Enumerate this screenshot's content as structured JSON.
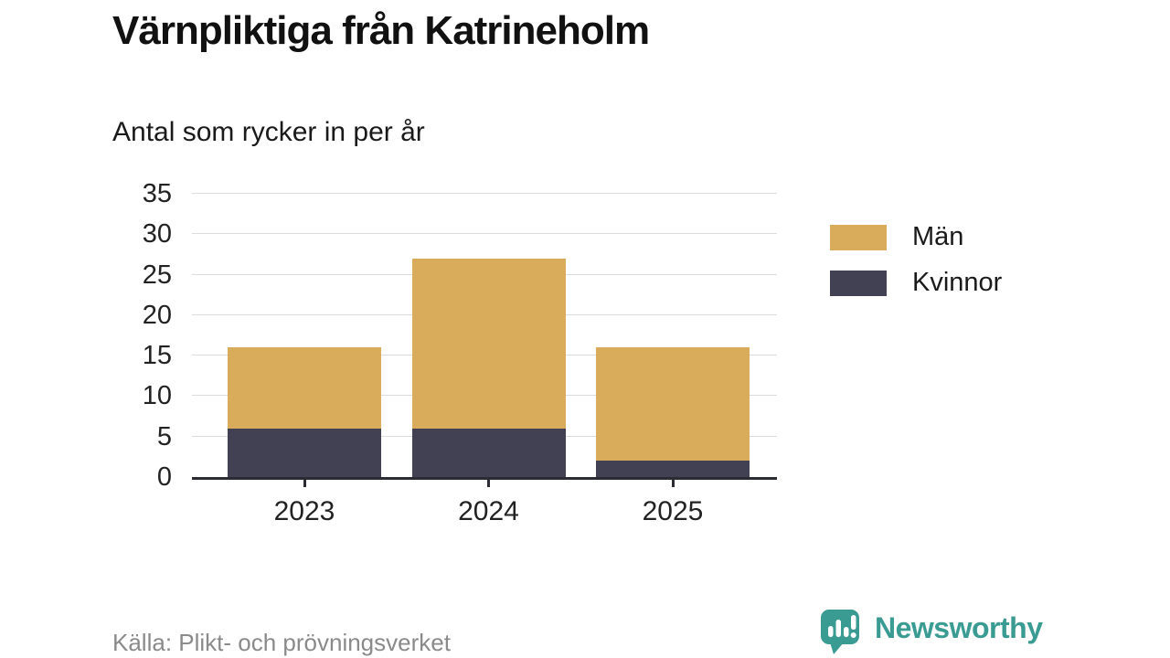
{
  "header": {
    "title": "Värnpliktiga från Katrineholm",
    "subtitle": "Antal som rycker in per år"
  },
  "chart_data": {
    "type": "bar",
    "stacked": true,
    "categories": [
      "2023",
      "2024",
      "2025"
    ],
    "series": [
      {
        "name": "Män",
        "color": "#d9ac5b",
        "values": [
          10,
          21,
          14
        ]
      },
      {
        "name": "Kvinnor",
        "color": "#414153",
        "values": [
          6,
          6,
          2
        ]
      }
    ],
    "stack_totals": [
      16,
      27,
      16
    ],
    "title": "Värnpliktiga från Katrineholm",
    "subtitle": "Antal som rycker in per år",
    "xlabel": "",
    "ylabel": "",
    "ylim": [
      0,
      35
    ],
    "yticks": [
      0,
      5,
      10,
      15,
      20,
      25,
      30,
      35
    ],
    "grid": true,
    "legend_position": "right"
  },
  "legend": {
    "items": [
      {
        "label": "Män",
        "color": "#d9ac5b"
      },
      {
        "label": "Kvinnor",
        "color": "#414153"
      }
    ]
  },
  "footer": {
    "source": "Källa: Plikt- och prövningsverket",
    "brand": "Newsworthy"
  },
  "colors": {
    "men": "#d9ac5b",
    "women": "#414153",
    "brand_teal": "#3a9b93",
    "grid": "#dcdcdc",
    "axis": "#2b2b33",
    "text": "#1a1a1a",
    "muted": "#8a8a8a"
  }
}
